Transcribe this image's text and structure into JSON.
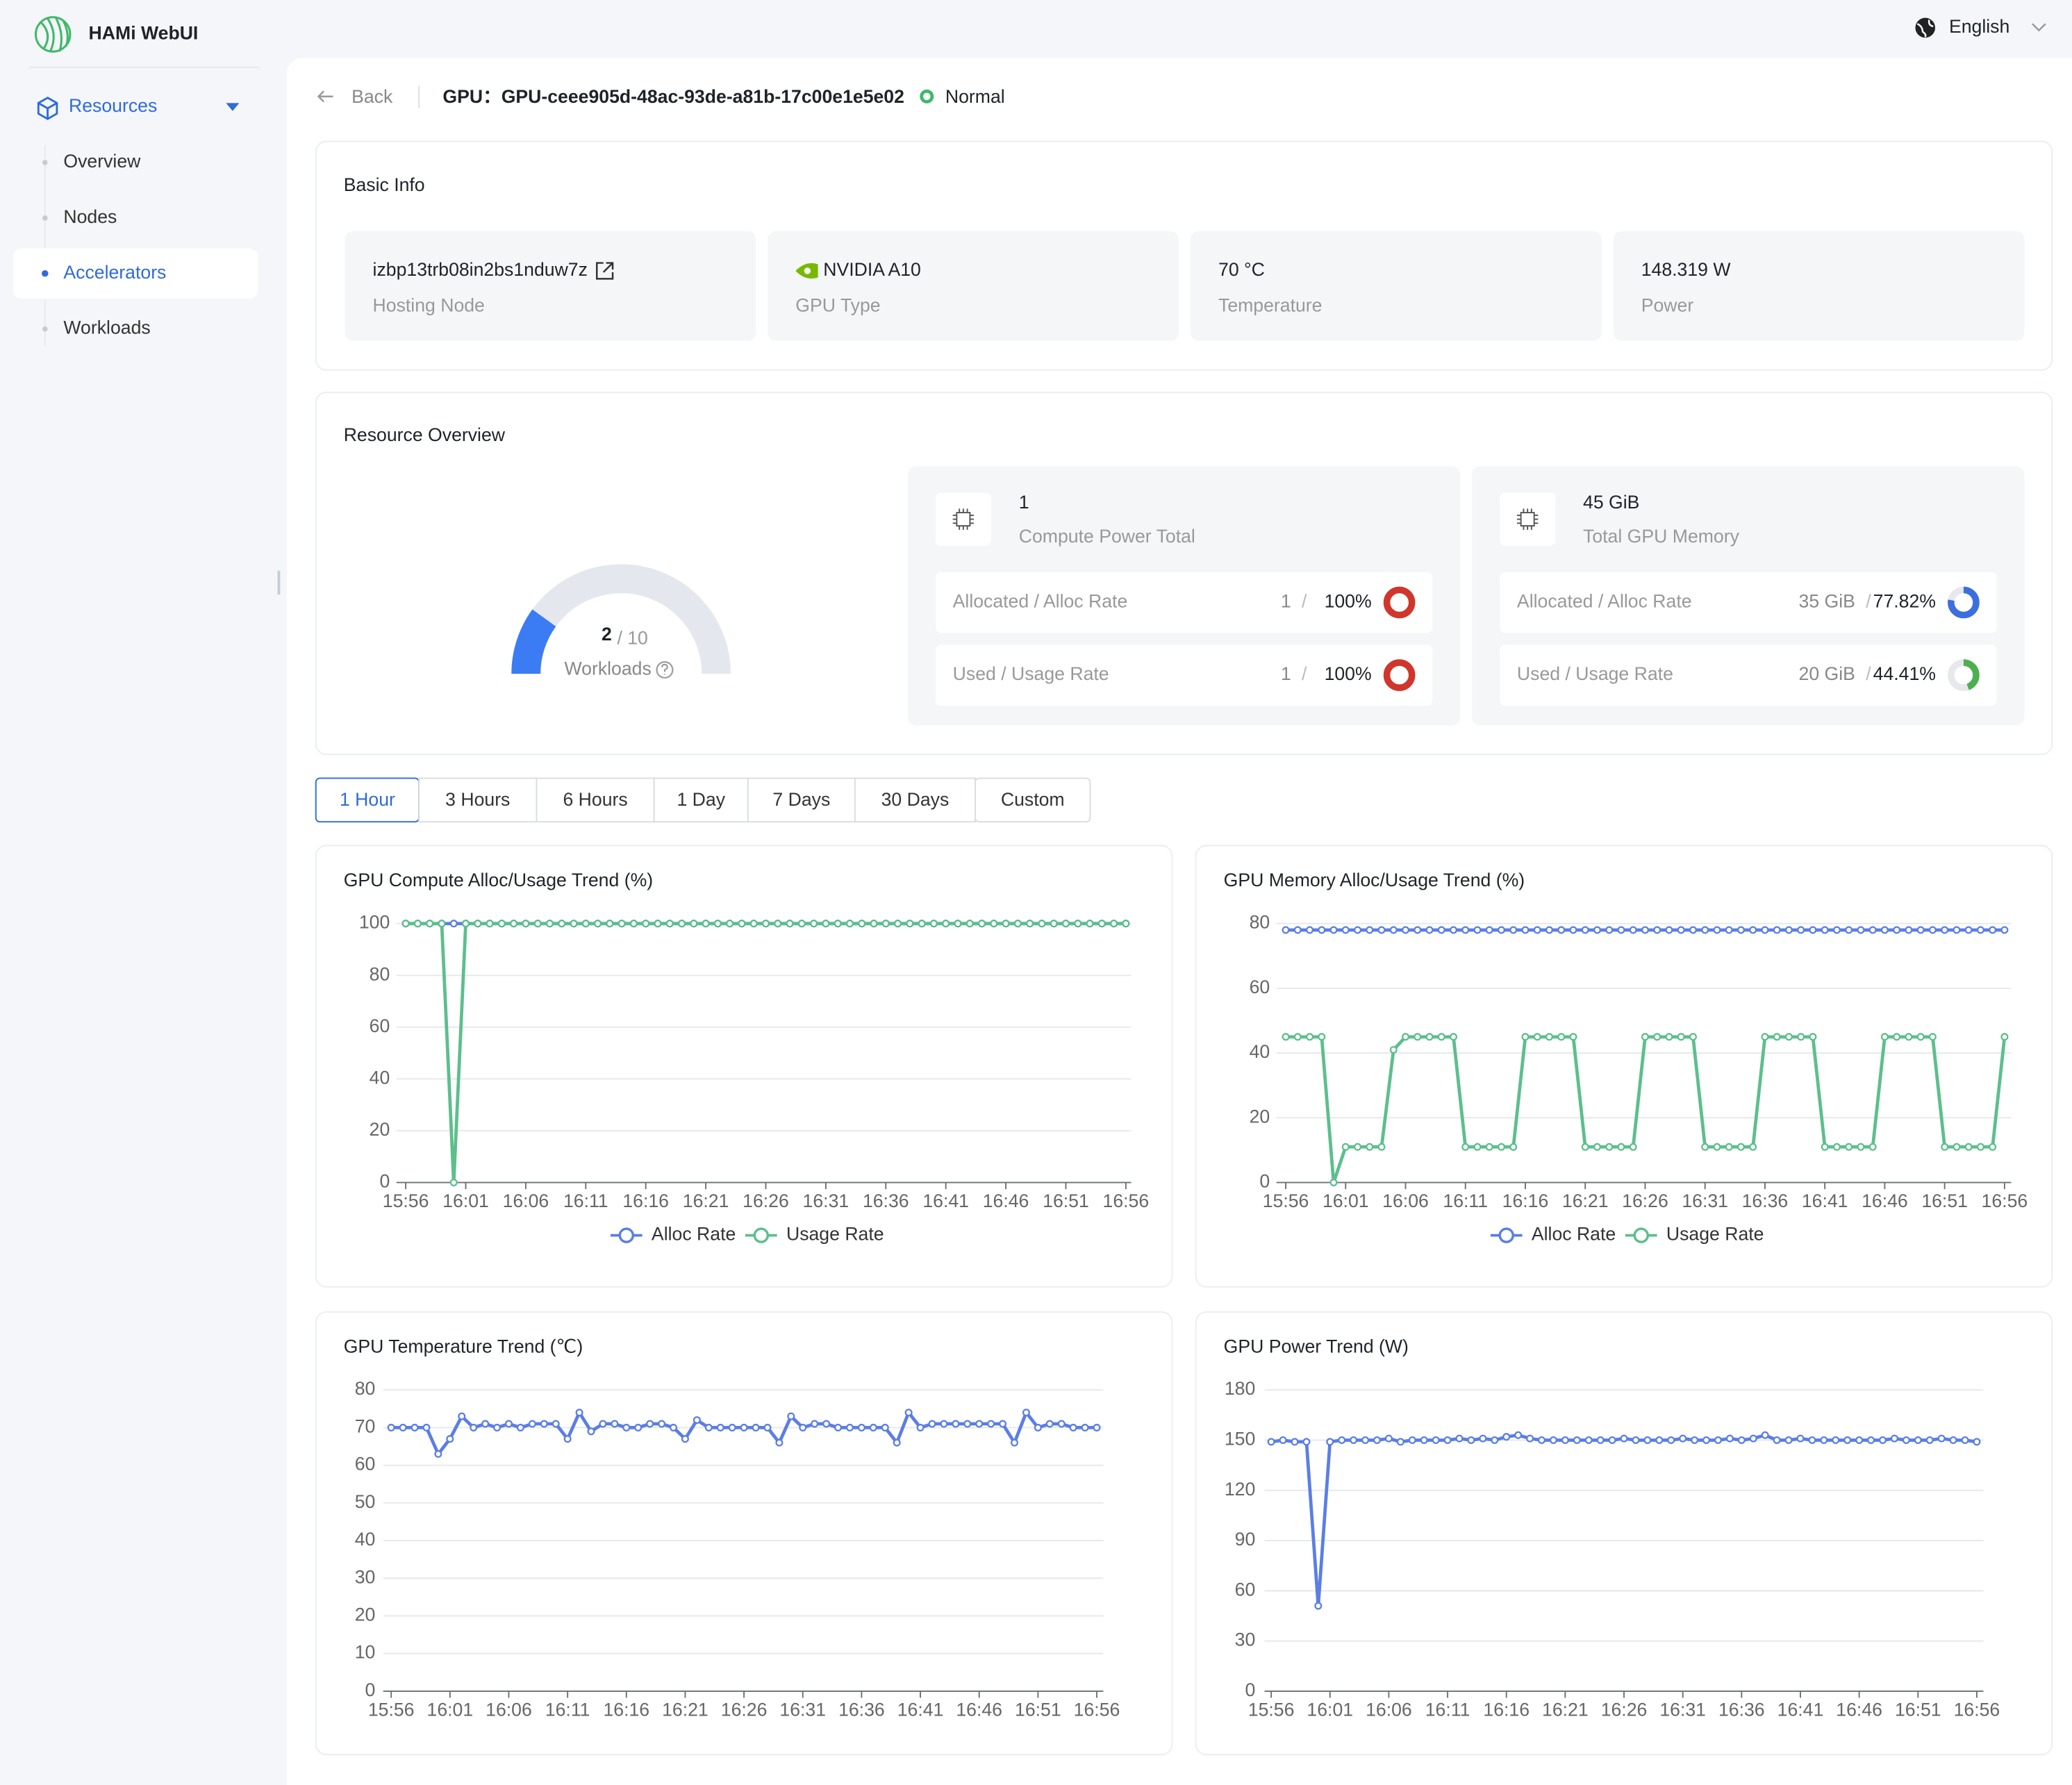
{
  "sidebar": {
    "app_name": "HAMi WebUI",
    "menu": {
      "label": "Resources",
      "items": [
        "Overview",
        "Nodes",
        "Accelerators",
        "Workloads"
      ],
      "active_index": 2
    }
  },
  "header": {
    "language": "English",
    "back": "Back",
    "title": "GPU：GPU-ceee905d-48ac-93de-a81b-17c00e1e5e02",
    "status": "Normal"
  },
  "basic_info": {
    "title": "Basic Info",
    "items": [
      {
        "value": "izbp13trb08in2bs1nduw7z",
        "label": "Hosting Node"
      },
      {
        "value": "NVIDIA A10",
        "label": "GPU Type"
      },
      {
        "value": "70 °C",
        "label": "Temperature"
      },
      {
        "value": "148.319 W",
        "label": "Power"
      }
    ]
  },
  "resource_overview": {
    "title": "Resource Overview",
    "workloads": {
      "label": "Workloads",
      "value": 2,
      "max": {
        "value": 10,
        "label": "/ 10"
      },
      "color": "#3b7cf5"
    },
    "panels": [
      {
        "total": "1",
        "total_label": "Compute Power Total",
        "rows": [
          {
            "label": "Allocated / Alloc Rate",
            "amount": "1",
            "separator": "/",
            "rate": {
              "value": 100,
              "label": "100%"
            },
            "color": "#d0362b"
          },
          {
            "label": "Used / Usage Rate",
            "amount": "1",
            "separator": "/",
            "rate": {
              "value": 100,
              "label": "100%"
            },
            "color": "#d0362b"
          }
        ]
      },
      {
        "total": "45 GiB",
        "total_label": "Total GPU Memory",
        "rows": [
          {
            "label": "Allocated / Alloc Rate",
            "amount": "35 GiB",
            "separator": "/",
            "rate": {
              "value": 77.82,
              "label": "77.82%"
            },
            "color": "#3b6fe0"
          },
          {
            "label": "Used / Usage Rate",
            "amount": "20 GiB",
            "separator": "/",
            "rate": {
              "value": 44.41,
              "label": "44.41%"
            },
            "color": "#4caf50"
          }
        ]
      }
    ]
  },
  "time_range": {
    "options": [
      "1 Hour",
      "3 Hours",
      "6 Hours",
      "1 Day",
      "7 Days",
      "30 Days",
      "Custom"
    ],
    "active_index": 0
  },
  "chart_data": [
    {
      "type": "line",
      "title": "GPU Compute Alloc/Usage Trend (%)",
      "categories": [
        "15:56",
        null,
        null,
        null,
        null,
        "16:01",
        null,
        null,
        null,
        null,
        "16:06",
        null,
        null,
        null,
        null,
        "16:11",
        null,
        null,
        null,
        null,
        "16:16",
        null,
        null,
        null,
        null,
        "16:21",
        null,
        null,
        null,
        null,
        "16:26",
        null,
        null,
        null,
        null,
        "16:31",
        null,
        null,
        null,
        null,
        "16:36",
        null,
        null,
        null,
        null,
        "16:41",
        null,
        null,
        null,
        null,
        "16:46",
        null,
        null,
        null,
        null,
        "16:51",
        null,
        null,
        null,
        null,
        "16:56"
      ],
      "series": [
        {
          "name": "Alloc Rate",
          "color": "#5b7ee5",
          "values": [
            100,
            100,
            100,
            100,
            100,
            100,
            100,
            100,
            100,
            100,
            100,
            100,
            100,
            100,
            100,
            100,
            100,
            100,
            100,
            100,
            100,
            100,
            100,
            100,
            100,
            100,
            100,
            100,
            100,
            100,
            100,
            100,
            100,
            100,
            100,
            100,
            100,
            100,
            100,
            100,
            100,
            100,
            100,
            100,
            100,
            100,
            100,
            100,
            100,
            100,
            100,
            100,
            100,
            100,
            100,
            100,
            100,
            100,
            100,
            100,
            100
          ]
        },
        {
          "name": "Usage Rate",
          "color": "#5cbf8c",
          "values": [
            100,
            100,
            100,
            100,
            0,
            100,
            100,
            100,
            100,
            100,
            100,
            100,
            100,
            100,
            100,
            100,
            100,
            100,
            100,
            100,
            100,
            100,
            100,
            100,
            100,
            100,
            100,
            100,
            100,
            100,
            100,
            100,
            100,
            100,
            100,
            100,
            100,
            100,
            100,
            100,
            100,
            100,
            100,
            100,
            100,
            100,
            100,
            100,
            100,
            100,
            100,
            100,
            100,
            100,
            100,
            100,
            100,
            100,
            100,
            100,
            100
          ]
        }
      ],
      "ylim": [
        0,
        100
      ],
      "yticks": [
        0,
        20,
        40,
        60,
        80,
        100
      ],
      "grid": true,
      "legend": "bottom"
    },
    {
      "type": "line",
      "title": "GPU Memory Alloc/Usage Trend (%)",
      "categories": [
        "15:56",
        null,
        null,
        null,
        null,
        "16:01",
        null,
        null,
        null,
        null,
        "16:06",
        null,
        null,
        null,
        null,
        "16:11",
        null,
        null,
        null,
        null,
        "16:16",
        null,
        null,
        null,
        null,
        "16:21",
        null,
        null,
        null,
        null,
        "16:26",
        null,
        null,
        null,
        null,
        "16:31",
        null,
        null,
        null,
        null,
        "16:36",
        null,
        null,
        null,
        null,
        "16:41",
        null,
        null,
        null,
        null,
        "16:46",
        null,
        null,
        null,
        null,
        "16:51",
        null,
        null,
        null,
        null,
        "16:56"
      ],
      "series": [
        {
          "name": "Alloc Rate",
          "color": "#5b7ee5",
          "values": [
            78,
            78,
            78,
            78,
            78,
            78,
            78,
            78,
            78,
            78,
            78,
            78,
            78,
            78,
            78,
            78,
            78,
            78,
            78,
            78,
            78,
            78,
            78,
            78,
            78,
            78,
            78,
            78,
            78,
            78,
            78,
            78,
            78,
            78,
            78,
            78,
            78,
            78,
            78,
            78,
            78,
            78,
            78,
            78,
            78,
            78,
            78,
            78,
            78,
            78,
            78,
            78,
            78,
            78,
            78,
            78,
            78,
            78,
            78,
            78,
            78
          ]
        },
        {
          "name": "Usage Rate",
          "color": "#5cbf8c",
          "values": [
            45,
            45,
            45,
            45,
            0,
            11,
            11,
            11,
            11,
            41,
            45,
            45,
            45,
            45,
            45,
            11,
            11,
            11,
            11,
            11,
            45,
            45,
            45,
            45,
            45,
            11,
            11,
            11,
            11,
            11,
            45,
            45,
            45,
            45,
            45,
            11,
            11,
            11,
            11,
            11,
            45,
            45,
            45,
            45,
            45,
            11,
            11,
            11,
            11,
            11,
            45,
            45,
            45,
            45,
            45,
            11,
            11,
            11,
            11,
            11,
            45
          ]
        }
      ],
      "ylim": [
        0,
        80
      ],
      "yticks": [
        0,
        20,
        40,
        60,
        80
      ],
      "grid": true,
      "legend": "bottom"
    },
    {
      "type": "line",
      "title": "GPU Temperature Trend (℃)",
      "categories": [
        "15:56",
        null,
        null,
        null,
        null,
        "16:01",
        null,
        null,
        null,
        null,
        "16:06",
        null,
        null,
        null,
        null,
        "16:11",
        null,
        null,
        null,
        null,
        "16:16",
        null,
        null,
        null,
        null,
        "16:21",
        null,
        null,
        null,
        null,
        "16:26",
        null,
        null,
        null,
        null,
        "16:31",
        null,
        null,
        null,
        null,
        "16:36",
        null,
        null,
        null,
        null,
        "16:41",
        null,
        null,
        null,
        null,
        "16:46",
        null,
        null,
        null,
        null,
        "16:51",
        null,
        null,
        null,
        null,
        "16:56"
      ],
      "series": [
        {
          "color": "#5b7ee5",
          "values": [
            70,
            70,
            70,
            70,
            63,
            67,
            73,
            70,
            71,
            70,
            71,
            70,
            71,
            71,
            71,
            67,
            74,
            69,
            71,
            71,
            70,
            70,
            71,
            71,
            70,
            67,
            72,
            70,
            70,
            70,
            70,
            70,
            70,
            66,
            73,
            70,
            71,
            71,
            70,
            70,
            70,
            70,
            70,
            66,
            74,
            70,
            71,
            71,
            71,
            71,
            71,
            71,
            71,
            66,
            74,
            70,
            71,
            71,
            70,
            70,
            70
          ]
        }
      ],
      "ylim": [
        0,
        80
      ],
      "yticks": [
        0,
        10,
        20,
        30,
        40,
        50,
        60,
        70,
        80
      ],
      "grid": true
    },
    {
      "type": "line",
      "title": "GPU Power Trend (W)",
      "categories": [
        "15:56",
        null,
        null,
        null,
        null,
        "16:01",
        null,
        null,
        null,
        null,
        "16:06",
        null,
        null,
        null,
        null,
        "16:11",
        null,
        null,
        null,
        null,
        "16:16",
        null,
        null,
        null,
        null,
        "16:21",
        null,
        null,
        null,
        null,
        "16:26",
        null,
        null,
        null,
        null,
        "16:31",
        null,
        null,
        null,
        null,
        "16:36",
        null,
        null,
        null,
        null,
        "16:41",
        null,
        null,
        null,
        null,
        "16:46",
        null,
        null,
        null,
        null,
        "16:51",
        null,
        null,
        null,
        null,
        "16:56"
      ],
      "series": [
        {
          "color": "#5b7ee5",
          "values": [
            149,
            150,
            149,
            149,
            51,
            149,
            150,
            150,
            150,
            150,
            151,
            149,
            150,
            150,
            150,
            150,
            151,
            150,
            151,
            150,
            152,
            153,
            151,
            150,
            150,
            150,
            150,
            150,
            150,
            150,
            151,
            150,
            150,
            150,
            150,
            151,
            150,
            150,
            150,
            151,
            150,
            151,
            153,
            150,
            150,
            151,
            150,
            150,
            150,
            150,
            150,
            150,
            150,
            151,
            150,
            150,
            150,
            151,
            150,
            150,
            149
          ]
        }
      ],
      "ylim": [
        0,
        180
      ],
      "yticks": [
        0,
        30,
        60,
        90,
        120,
        150,
        180
      ],
      "grid": true
    }
  ]
}
